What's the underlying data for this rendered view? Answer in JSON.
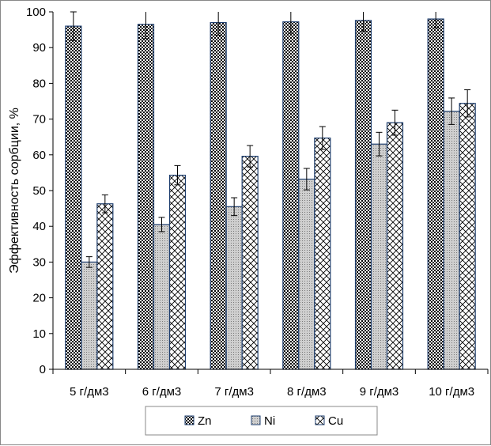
{
  "chart_data": {
    "type": "bar",
    "title": "",
    "xlabel": "",
    "ylabel": "Эффективность сорбции, %",
    "categories": [
      "5 г/дм3",
      "6 г/дм3",
      "7 г/дм3",
      "8 г/дм3",
      "9 г/дм3",
      "10 г/дм3"
    ],
    "ylim": [
      0,
      100
    ],
    "yticks": [
      0,
      10,
      20,
      30,
      40,
      50,
      60,
      70,
      80,
      90,
      100
    ],
    "grid": false,
    "legend": "bottom",
    "series": [
      {
        "name": "Zn",
        "pattern": "crosshatch-dense",
        "values": [
          96,
          96.5,
          97,
          97.2,
          97.6,
          98
        ],
        "errors": [
          4,
          4,
          3.5,
          3.2,
          3,
          2.5
        ]
      },
      {
        "name": "Ni",
        "pattern": "dotted-light",
        "values": [
          30,
          40.5,
          45.5,
          53.2,
          63,
          72.2
        ],
        "errors": [
          1.5,
          2,
          2.5,
          3,
          3.3,
          3.7
        ]
      },
      {
        "name": "Cu",
        "pattern": "diagonal-cross",
        "values": [
          46.3,
          54.3,
          59.6,
          64.7,
          69,
          74.4
        ],
        "errors": [
          2.5,
          2.7,
          3,
          3.2,
          3.5,
          3.8
        ]
      }
    ],
    "colors": {
      "frame": "#1F3F6F",
      "axis": "#000000"
    }
  }
}
